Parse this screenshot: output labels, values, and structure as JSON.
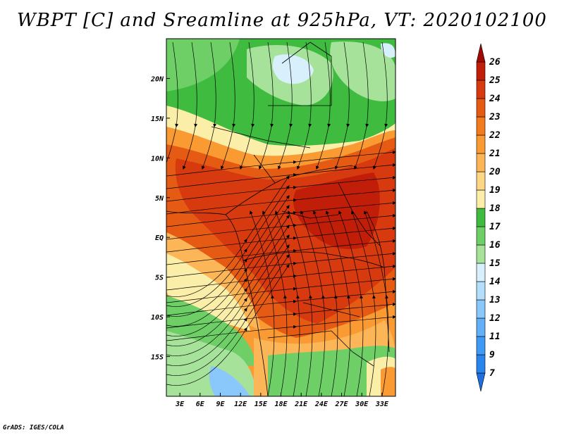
{
  "title": "WBPT [C] and Sreamline at 925hPa, VT: 2020102100",
  "credit": "GrADS: IGES/COLA",
  "map": {
    "lon_ticks": [
      "3E",
      "6E",
      "9E",
      "12E",
      "15E",
      "18E",
      "21E",
      "24E",
      "27E",
      "30E",
      "33E"
    ],
    "lat_ticks": [
      "20N",
      "15N",
      "10N",
      "5N",
      "EQ",
      "5S",
      "10S",
      "15S"
    ],
    "lon_range": [
      1,
      35
    ],
    "lat_range": [
      -20,
      25
    ]
  },
  "colorbar": {
    "labels": [
      "7",
      "9",
      "11",
      "12",
      "13",
      "14",
      "15",
      "16",
      "17",
      "18",
      "19",
      "20",
      "21",
      "22",
      "23",
      "24",
      "25",
      "26"
    ],
    "colors": [
      "#1f6fe0",
      "#2a84ee",
      "#3f9af5",
      "#62b1f8",
      "#8ac8fb",
      "#b3defc",
      "#d8f0fb",
      "#a6e29a",
      "#6ecf67",
      "#3fbb3f",
      "#fbeea8",
      "#fdd686",
      "#fcb657",
      "#f99a33",
      "#f27b1e",
      "#e65b14",
      "#d63a0e",
      "#c01e08",
      "#a00a04"
    ]
  },
  "fill_colors": {
    "green_dark": "#3fbb3f",
    "green_mid": "#6ecf67",
    "green_light": "#a6e29a",
    "blue_pale": "#d8f0fb",
    "blue_light": "#8ac8fb",
    "yellow": "#fbeea8",
    "orange_light": "#fcb657",
    "orange": "#f99a33",
    "orange_dark": "#f27b1e",
    "red_orange": "#e65b14",
    "red": "#d63a0e",
    "red_dark": "#c01e08"
  }
}
